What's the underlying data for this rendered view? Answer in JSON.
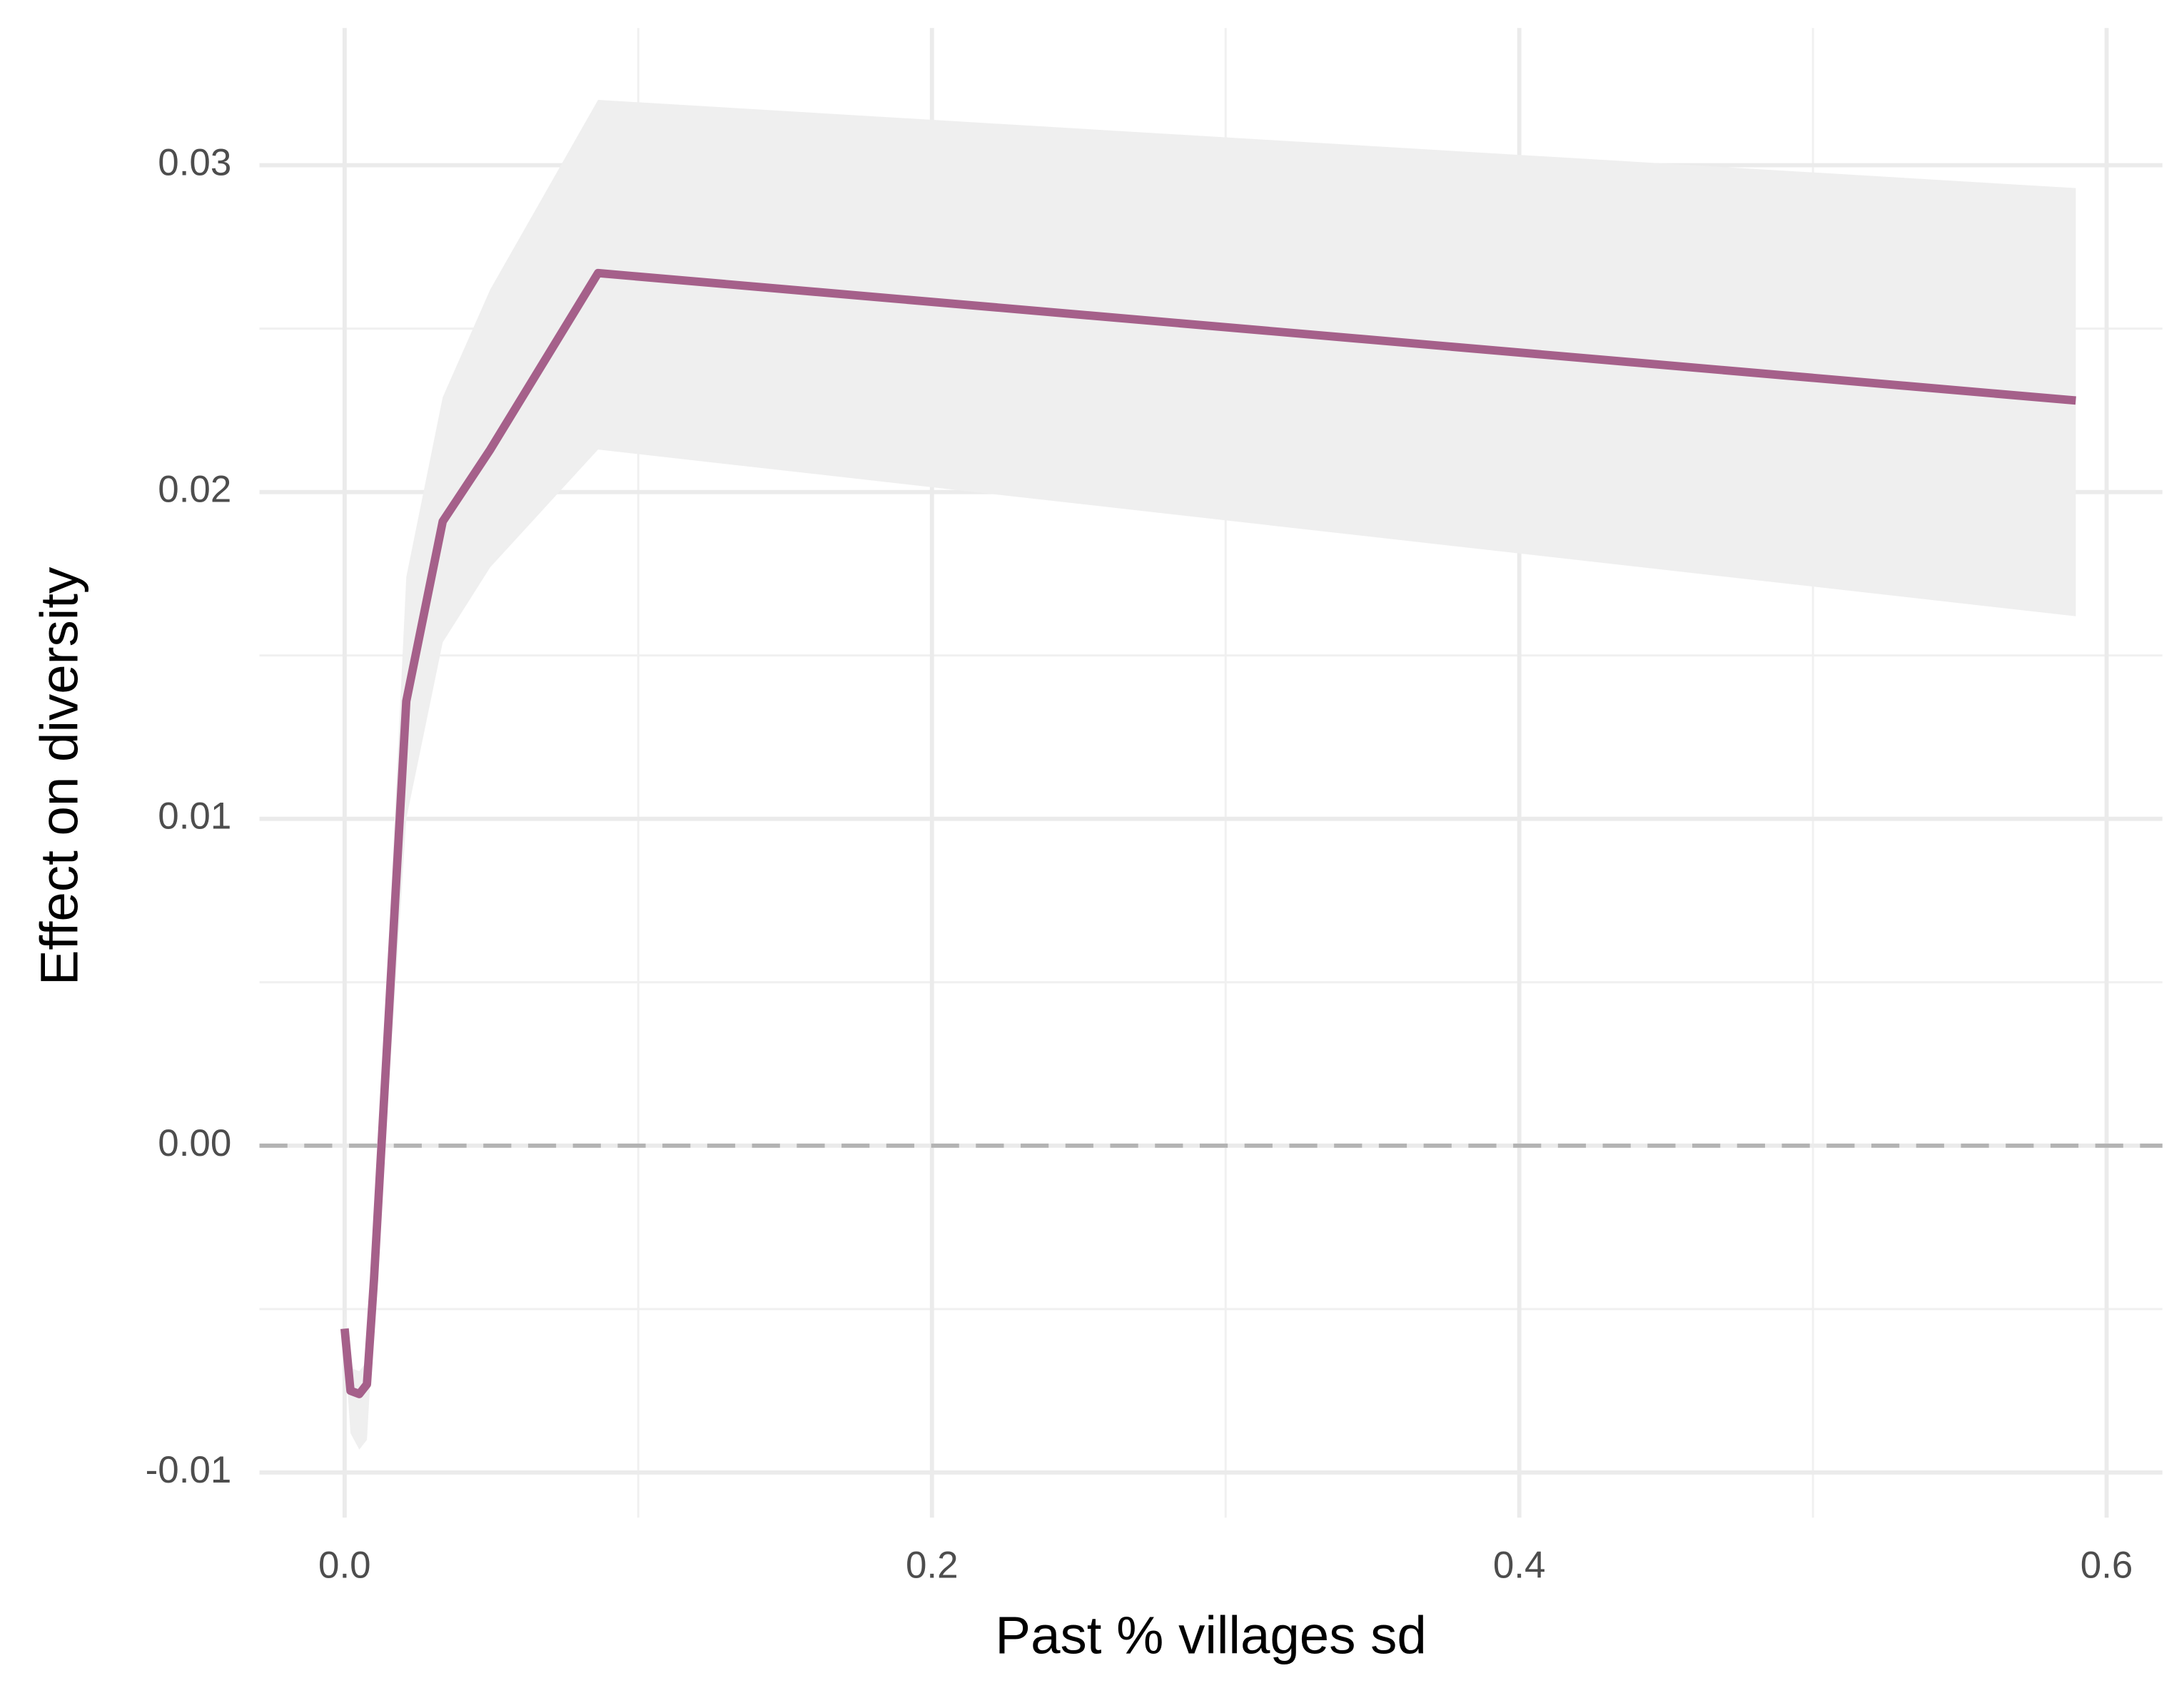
{
  "chart_data": {
    "type": "line",
    "x_label": "Past % villages sd",
    "y_label": "Effect on diversity",
    "x": [
      0,
      0.002,
      0.005,
      0.0076,
      0.01,
      0.021,
      0.0334,
      0.0496,
      0.0863,
      0.5895
    ],
    "series": [
      {
        "color": "#a5608a",
        "values": [
          -0.0056,
          -0.0075,
          -0.0076,
          -0.0073,
          -0.0041,
          0.0136,
          0.0191,
          0.0213,
          0.0267,
          0.0228
        ],
        "upper": [
          -0.005,
          -0.0068,
          -0.0069,
          -0.0066,
          -0.0032,
          0.0174,
          0.0229,
          0.0262,
          0.032,
          0.0293
        ],
        "lower": [
          -0.0062,
          -0.0088,
          -0.0093,
          -0.009,
          -0.0052,
          0.01,
          0.0154,
          0.0177,
          0.0213,
          0.0162
        ],
        "band_color": "#efefef"
      }
    ],
    "xlim": [
      -0.029,
      0.619
    ],
    "ylim": [
      -0.01138,
      0.0342
    ],
    "xticks": [
      {
        "value": 0,
        "label": "0.0"
      },
      0.2,
      0.4,
      0.6
    ],
    "yticks": [
      -0.01,
      {
        "value": 0,
        "label": "0.00"
      },
      0.01,
      0.02,
      0.03
    ],
    "grid": true,
    "hline": {
      "value": 0,
      "color": "#b3b3b3",
      "dash": true
    }
  }
}
